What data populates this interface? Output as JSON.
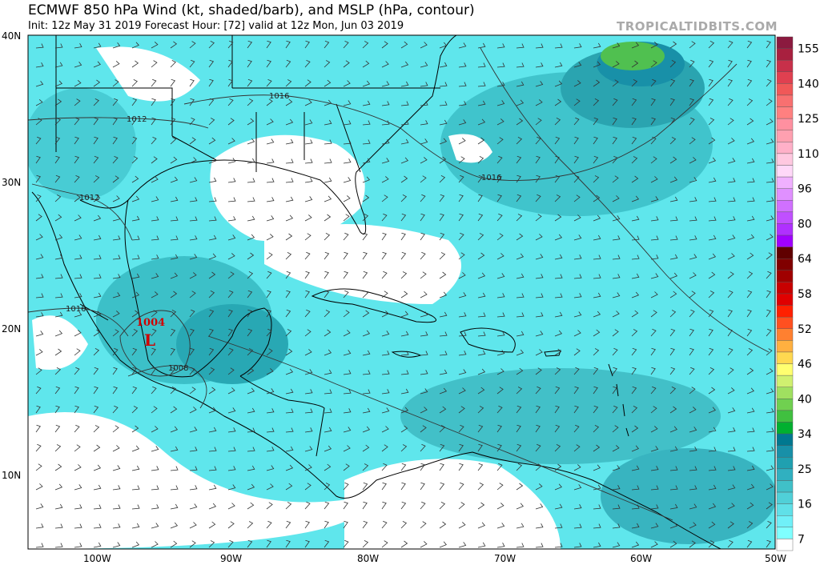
{
  "header": {
    "title": "ECMWF 850 hPa Wind (kt, shaded/barb), and MSLP (hPa, contour)",
    "subtitle": "Init: 12z May 31 2019   Forecast Hour: [72]   valid at 12z Mon, Jun 03 2019",
    "brand": "TROPICALTIDBITS.COM"
  },
  "map": {
    "lat_labels": [
      "40N",
      "30N",
      "20N",
      "10N"
    ],
    "lon_labels": [
      "100W",
      "90W",
      "80W",
      "70W",
      "60W",
      "50W"
    ],
    "contour_labels": [
      "1016",
      "1012",
      "1012",
      "1016",
      "1016",
      "1008"
    ],
    "low_center": {
      "pressure": "1004",
      "symbol": "L",
      "color": "#d00000"
    }
  },
  "colorbar": {
    "labels": [
      "155",
      "140",
      "125",
      "110",
      "96",
      "80",
      "64",
      "58",
      "52",
      "46",
      "40",
      "34",
      "25",
      "16",
      "7"
    ],
    "colors": [
      "#8b1a3f",
      "#a8203f",
      "#c8304a",
      "#e04050",
      "#f05858",
      "#f87070",
      "#ff8080",
      "#ff90a0",
      "#ffa0b0",
      "#ffb0c8",
      "#ffc8e0",
      "#ffd8f8",
      "#f0b0ff",
      "#e090ff",
      "#d070ff",
      "#c050ff",
      "#b030ff",
      "#a000ff",
      "#600000",
      "#800000",
      "#a00000",
      "#c80000",
      "#e00000",
      "#ff2000",
      "#ff5020",
      "#ff8030",
      "#ffb040",
      "#ffd850",
      "#ffff70",
      "#d0f070",
      "#a0e060",
      "#70d050",
      "#40c040",
      "#00b030",
      "#007890",
      "#1890a8",
      "#20a0b0",
      "#30b0c0",
      "#40c0c8",
      "#50d0d8",
      "#60e0e8",
      "#70f0f8",
      "#80ffff",
      "#ffffff"
    ]
  }
}
